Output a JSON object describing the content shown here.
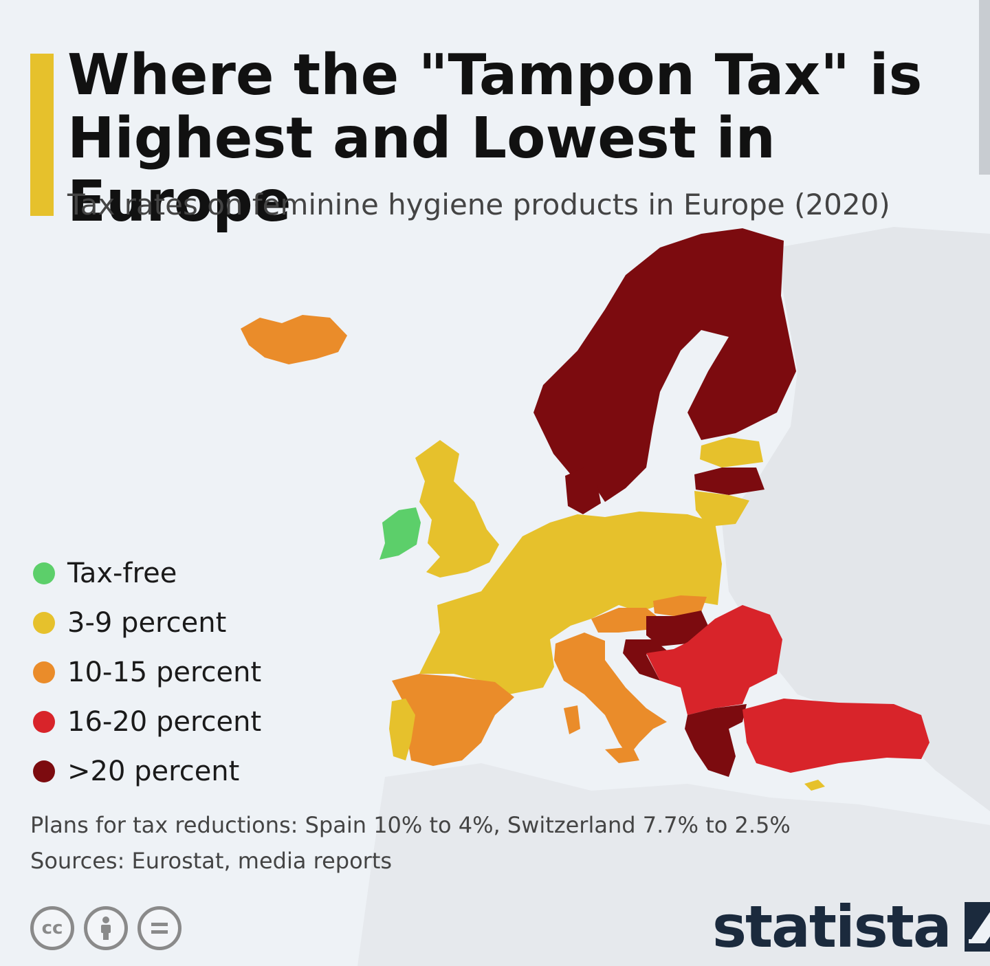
{
  "title": "Where the \"Tampon Tax\" is Highest and Lowest in Europe",
  "subtitle": "Tax rates on feminine hygiene products in Europe (2020)",
  "colors": {
    "tax_free": "#5ccf6a",
    "low": "#e6c12c",
    "mid": "#ea8c2a",
    "high": "#d8242a",
    "very_high": "#7c0b0f",
    "background": "#eef2f6",
    "land_no_data": "#e3e6ea",
    "accent": "#e6c12c",
    "brand": "#1b2a3d"
  },
  "legend": [
    {
      "label": "Tax-free",
      "color": "#5ccf6a"
    },
    {
      "label": "3-9 percent",
      "color": "#e6c12c"
    },
    {
      "label": "10-15 percent",
      "color": "#ea8c2a"
    },
    {
      "label": "16-20 percent",
      "color": "#d8242a"
    },
    {
      "label": ">20 percent",
      "color": "#7c0b0f"
    }
  ],
  "note": "Plans for tax reductions: Spain 10% to 4%, Switzerland 7.7% to 2.5%",
  "source": "Sources: Eurostat, media reports",
  "license_icons": [
    "cc-icon",
    "attribution-icon",
    "no-derivatives-icon"
  ],
  "brand": "statista"
}
